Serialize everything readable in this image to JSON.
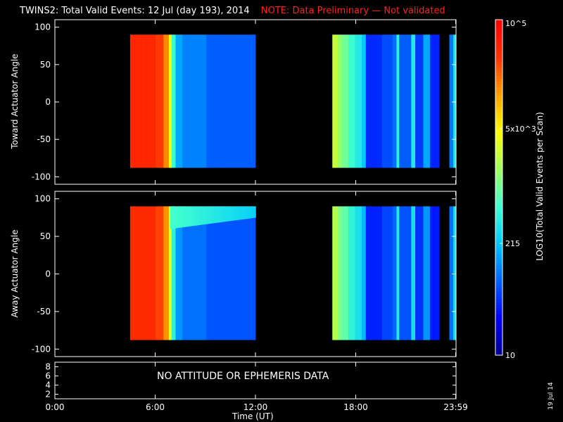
{
  "header": {
    "title": "TWINS2: Total Valid Events: 12 Jul (day 193), 2014",
    "note": "NOTE: Data Preliminary — Not validated",
    "note_color": "#ff2020"
  },
  "chart_data": [
    {
      "type": "heatmap",
      "panel": "top",
      "ylabel": "Toward Actuator Angle",
      "ylim": [
        -110,
        110
      ],
      "yticks": [
        100,
        50,
        0,
        -50,
        -100
      ],
      "xlim": [
        0,
        24
      ],
      "data_range_y": [
        -88,
        90
      ],
      "segments": [
        {
          "start": 4.5,
          "end": 12.0
        },
        {
          "start": 16.6,
          "end": 23.0
        },
        {
          "start": 23.6,
          "end": 24.0
        }
      ],
      "time_profile": [
        {
          "t": 4.5,
          "level": 0.91
        },
        {
          "t": 6.0,
          "level": 0.88
        },
        {
          "t": 6.5,
          "level": 0.8
        },
        {
          "t": 6.75,
          "level": 0.65
        },
        {
          "t": 6.95,
          "level": 0.44
        },
        {
          "t": 7.2,
          "level": 0.3
        },
        {
          "t": 7.6,
          "level": 0.26
        },
        {
          "t": 9.0,
          "level": 0.22
        },
        {
          "t": 11.99,
          "level": 0.2
        },
        {
          "t": 16.6,
          "level": 0.6
        },
        {
          "t": 16.85,
          "level": 0.55
        },
        {
          "t": 17.1,
          "level": 0.5
        },
        {
          "t": 17.5,
          "level": 0.44
        },
        {
          "t": 17.9,
          "level": 0.4
        },
        {
          "t": 18.3,
          "level": 0.34
        },
        {
          "t": 18.6,
          "level": 0.16
        },
        {
          "t": 19.5,
          "level": 0.2
        },
        {
          "t": 20.2,
          "level": 0.24
        },
        {
          "t": 20.4,
          "level": 0.42
        },
        {
          "t": 20.6,
          "level": 0.22
        },
        {
          "t": 21.3,
          "level": 0.4
        },
        {
          "t": 21.5,
          "level": 0.18
        },
        {
          "t": 22.0,
          "level": 0.3
        },
        {
          "t": 22.4,
          "level": 0.15
        },
        {
          "t": 22.99,
          "level": 0.18
        },
        {
          "t": 23.6,
          "level": 0.25
        },
        {
          "t": 23.8,
          "level": 0.4
        },
        {
          "t": 24.0,
          "level": 0.3
        }
      ]
    },
    {
      "type": "heatmap",
      "panel": "bottom",
      "ylabel": "Away Actuator Angle",
      "ylim": [
        -110,
        110
      ],
      "yticks": [
        100,
        50,
        0,
        -50,
        -100
      ],
      "xlim": [
        0,
        24
      ],
      "data_range_y": [
        -88,
        90
      ],
      "segments": [
        {
          "start": 4.5,
          "end": 12.0
        },
        {
          "start": 16.6,
          "end": 23.0
        },
        {
          "start": 23.6,
          "end": 24.0
        }
      ],
      "time_profile": [
        {
          "t": 4.5,
          "level": 0.9
        },
        {
          "t": 6.0,
          "level": 0.87
        },
        {
          "t": 6.5,
          "level": 0.79
        },
        {
          "t": 6.75,
          "level": 0.63
        },
        {
          "t": 6.95,
          "level": 0.42
        },
        {
          "t": 7.2,
          "level": 0.28
        },
        {
          "t": 7.6,
          "level": 0.24
        },
        {
          "t": 9.0,
          "level": 0.21
        },
        {
          "t": 11.99,
          "level": 0.19
        },
        {
          "t": 16.6,
          "level": 0.58
        },
        {
          "t": 16.85,
          "level": 0.52
        },
        {
          "t": 17.1,
          "level": 0.48
        },
        {
          "t": 17.5,
          "level": 0.42
        },
        {
          "t": 17.9,
          "level": 0.38
        },
        {
          "t": 18.3,
          "level": 0.32
        },
        {
          "t": 18.6,
          "level": 0.15
        },
        {
          "t": 19.5,
          "level": 0.19
        },
        {
          "t": 20.2,
          "level": 0.23
        },
        {
          "t": 20.4,
          "level": 0.4
        },
        {
          "t": 20.6,
          "level": 0.21
        },
        {
          "t": 21.3,
          "level": 0.38
        },
        {
          "t": 21.5,
          "level": 0.17
        },
        {
          "t": 22.0,
          "level": 0.28
        },
        {
          "t": 22.4,
          "level": 0.14
        },
        {
          "t": 22.99,
          "level": 0.17
        },
        {
          "t": 23.6,
          "level": 0.24
        },
        {
          "t": 23.8,
          "level": 0.38
        },
        {
          "t": 24.0,
          "level": 0.3
        }
      ],
      "high_angle_band": {
        "y_from": 60,
        "y_to": 90,
        "t_from": 6.9,
        "t_to": 12.0,
        "level": 0.45
      }
    },
    {
      "type": "line",
      "panel": "ephemeris",
      "yticks": [
        8,
        6,
        4,
        2
      ],
      "ylim": [
        1,
        9
      ],
      "xlim": [
        0,
        24
      ],
      "message": "NO ATTITUDE OR EPHEMERIS DATA"
    }
  ],
  "x_axis": {
    "ticks": [
      {
        "t": 0,
        "label": "0:00"
      },
      {
        "t": 6,
        "label": "6:00"
      },
      {
        "t": 12,
        "label": "12:00"
      },
      {
        "t": 18,
        "label": "18:00"
      },
      {
        "t": 23.98,
        "label": "23:59"
      }
    ],
    "label": "Time (UT)"
  },
  "colorbar": {
    "label": "LOG10(Total Valid Events per Scan)",
    "ticks": [
      {
        "value": 10,
        "label": "10"
      },
      {
        "value": 215,
        "label": "215"
      },
      {
        "value": 5000,
        "label": "5x10^3"
      },
      {
        "value": 100000,
        "label": "10^5"
      }
    ],
    "range": [
      10,
      100000
    ],
    "scale": "log",
    "colormap": [
      "#000090",
      "#0000ff",
      "#0060ff",
      "#00c8ff",
      "#40ffd0",
      "#a0ff60",
      "#ffff00",
      "#ffa000",
      "#ff3000",
      "#ff0000"
    ]
  },
  "footer": {
    "date_stamp": "19 Jul 14"
  }
}
